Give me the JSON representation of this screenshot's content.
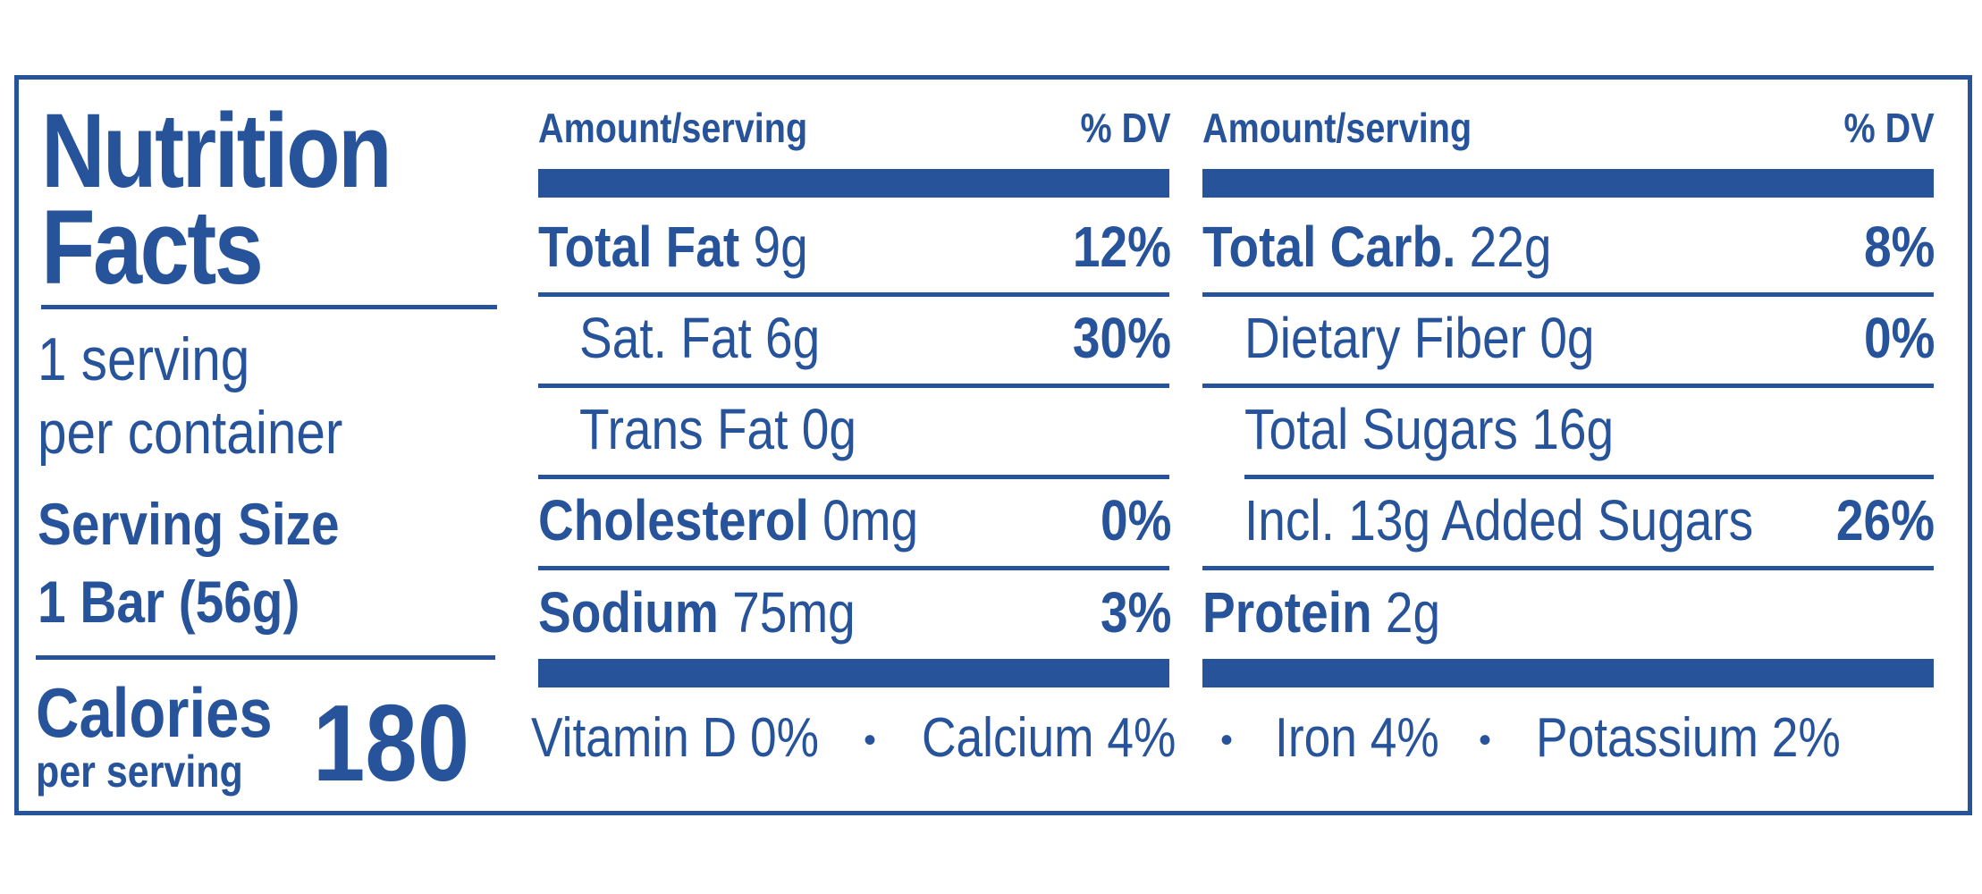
{
  "panel": {
    "title_line1": "Nutrition",
    "title_line2": "Facts",
    "servings_line1": "1 serving",
    "servings_line2": "per container",
    "serving_size_label": "Serving Size",
    "serving_size_value": "1 Bar (56g)",
    "calories_label": "Calories",
    "calories_sub": "per serving",
    "calories_value": "180"
  },
  "left_column": {
    "header_amount": "Amount/serving",
    "header_dv": "% DV",
    "rows": [
      {
        "name": "Total Fat",
        "amount": "9g",
        "dv": "12%"
      },
      {
        "name": "Sat. Fat",
        "amount": "6g",
        "dv": "30%"
      },
      {
        "name": "Trans Fat",
        "amount": "0g",
        "dv": ""
      },
      {
        "name": "Cholesterol",
        "amount": "0mg",
        "dv": "0%"
      },
      {
        "name": "Sodium",
        "amount": "75mg",
        "dv": "3%"
      }
    ]
  },
  "right_column": {
    "header_amount": "Amount/serving",
    "header_dv": "% DV",
    "rows": [
      {
        "name": "Total Carb.",
        "amount": "22g",
        "dv": "8%"
      },
      {
        "name": "Dietary Fiber",
        "amount": "0g",
        "dv": "0%"
      },
      {
        "name": "Total Sugars",
        "amount": "16g",
        "dv": ""
      },
      {
        "name": "Incl. 13g Added Sugars",
        "amount": "",
        "dv": "26%"
      },
      {
        "name": "Protein",
        "amount": "2g",
        "dv": ""
      }
    ]
  },
  "vitamins": [
    {
      "text": "Vitamin D 0%"
    },
    {
      "text": "Calcium 4%"
    },
    {
      "text": "Iron 4%"
    },
    {
      "text": "Potassium 2%"
    }
  ],
  "separator": "•",
  "colors": {
    "ink": "#27539a",
    "background": "#ffffff"
  }
}
